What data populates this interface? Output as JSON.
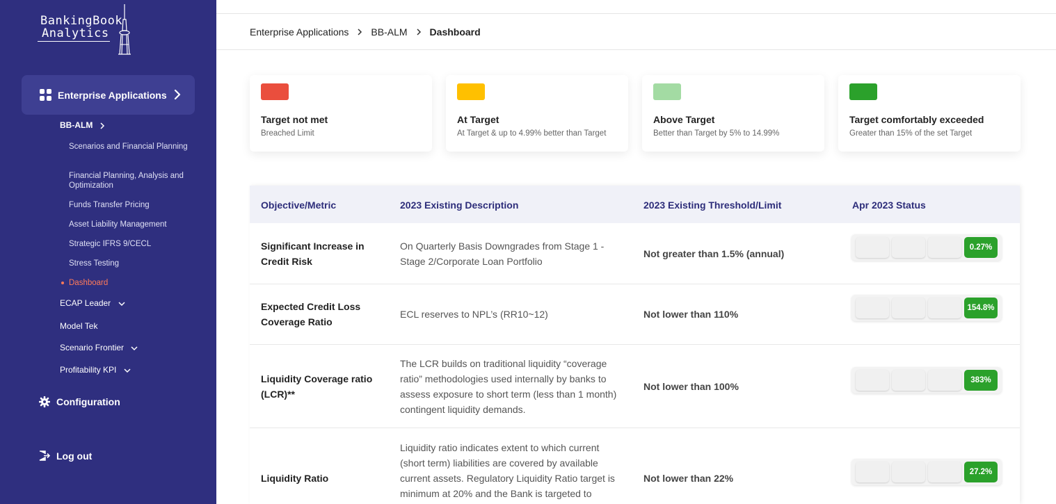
{
  "logo": {
    "line1": "BankingBook",
    "line2": "Analytics"
  },
  "sidebar": {
    "enterprise_label": "Enterprise Applications",
    "bbalm_label": "BB-ALM",
    "sub_items": [
      "Scenarios and Financial Planning",
      "Financial Planning, Analysis and Optimization",
      "Funds Transfer Pricing",
      "Asset Liability Management",
      "Strategic IFRS 9/CECL",
      "Stress Testing",
      "Dashboard"
    ],
    "ecap_label": "ECAP Leader",
    "modeltek_label": "Model Tek",
    "frontier_label": "Scenario Frontier",
    "kpi_label": "Profitability KPI",
    "config_label": "Configuration",
    "logout_label": "Log out"
  },
  "breadcrumb": [
    "Enterprise Applications",
    "BB-ALM",
    "Dashboard"
  ],
  "legend": [
    {
      "title": "Target not met",
      "desc": "Breached Limit",
      "color": "#ea4e3d"
    },
    {
      "title": "At Target",
      "desc": "At Target & up to 4.99% better than Target",
      "color": "#ffc000"
    },
    {
      "title": "Above Target",
      "desc": "Better than Target by 5% to 14.99%",
      "color": "#a3dba3"
    },
    {
      "title": "Target comfortably exceeded",
      "desc": "Greater than 15% of the set Target",
      "color": "#2ba12b"
    }
  ],
  "table": {
    "headers": [
      "Objective/Metric",
      "2023 Existing Description",
      "2023 Existing Threshold/Limit",
      "Apr 2023 Status"
    ],
    "rows": [
      {
        "metric": "Significant Increase in Credit Risk",
        "desc": "On Quarterly Basis Downgrades from Stage 1 - Stage 2/Corporate Loan Portfolio",
        "threshold": "Not greater than 1.5% (annual)",
        "status": "0.27%"
      },
      {
        "metric": "Expected Credit Loss Coverage Ratio",
        "desc": "ECL reserves to NPL’s (RR10~12)",
        "threshold": "Not lower than 110%",
        "status": "154.8%"
      },
      {
        "metric": "Liquidity Coverage ratio (LCR)**",
        "desc": "The LCR builds on traditional liquidity “coverage ratio” methodologies used internally by banks to assess exposure to short term (less than 1 month) contingent liquidity demands.",
        "threshold": "Not lower than 100%",
        "status": "383%"
      },
      {
        "metric": "Liquidity Ratio",
        "desc": "Liquidity ratio indicates extent to which current (short term) liabilities are covered by available current assets. Regulatory Liquidity Ratio target is minimum at 20% and the Bank is targeted to",
        "threshold": "Not lower than 22%",
        "status": "27.2%"
      }
    ]
  }
}
